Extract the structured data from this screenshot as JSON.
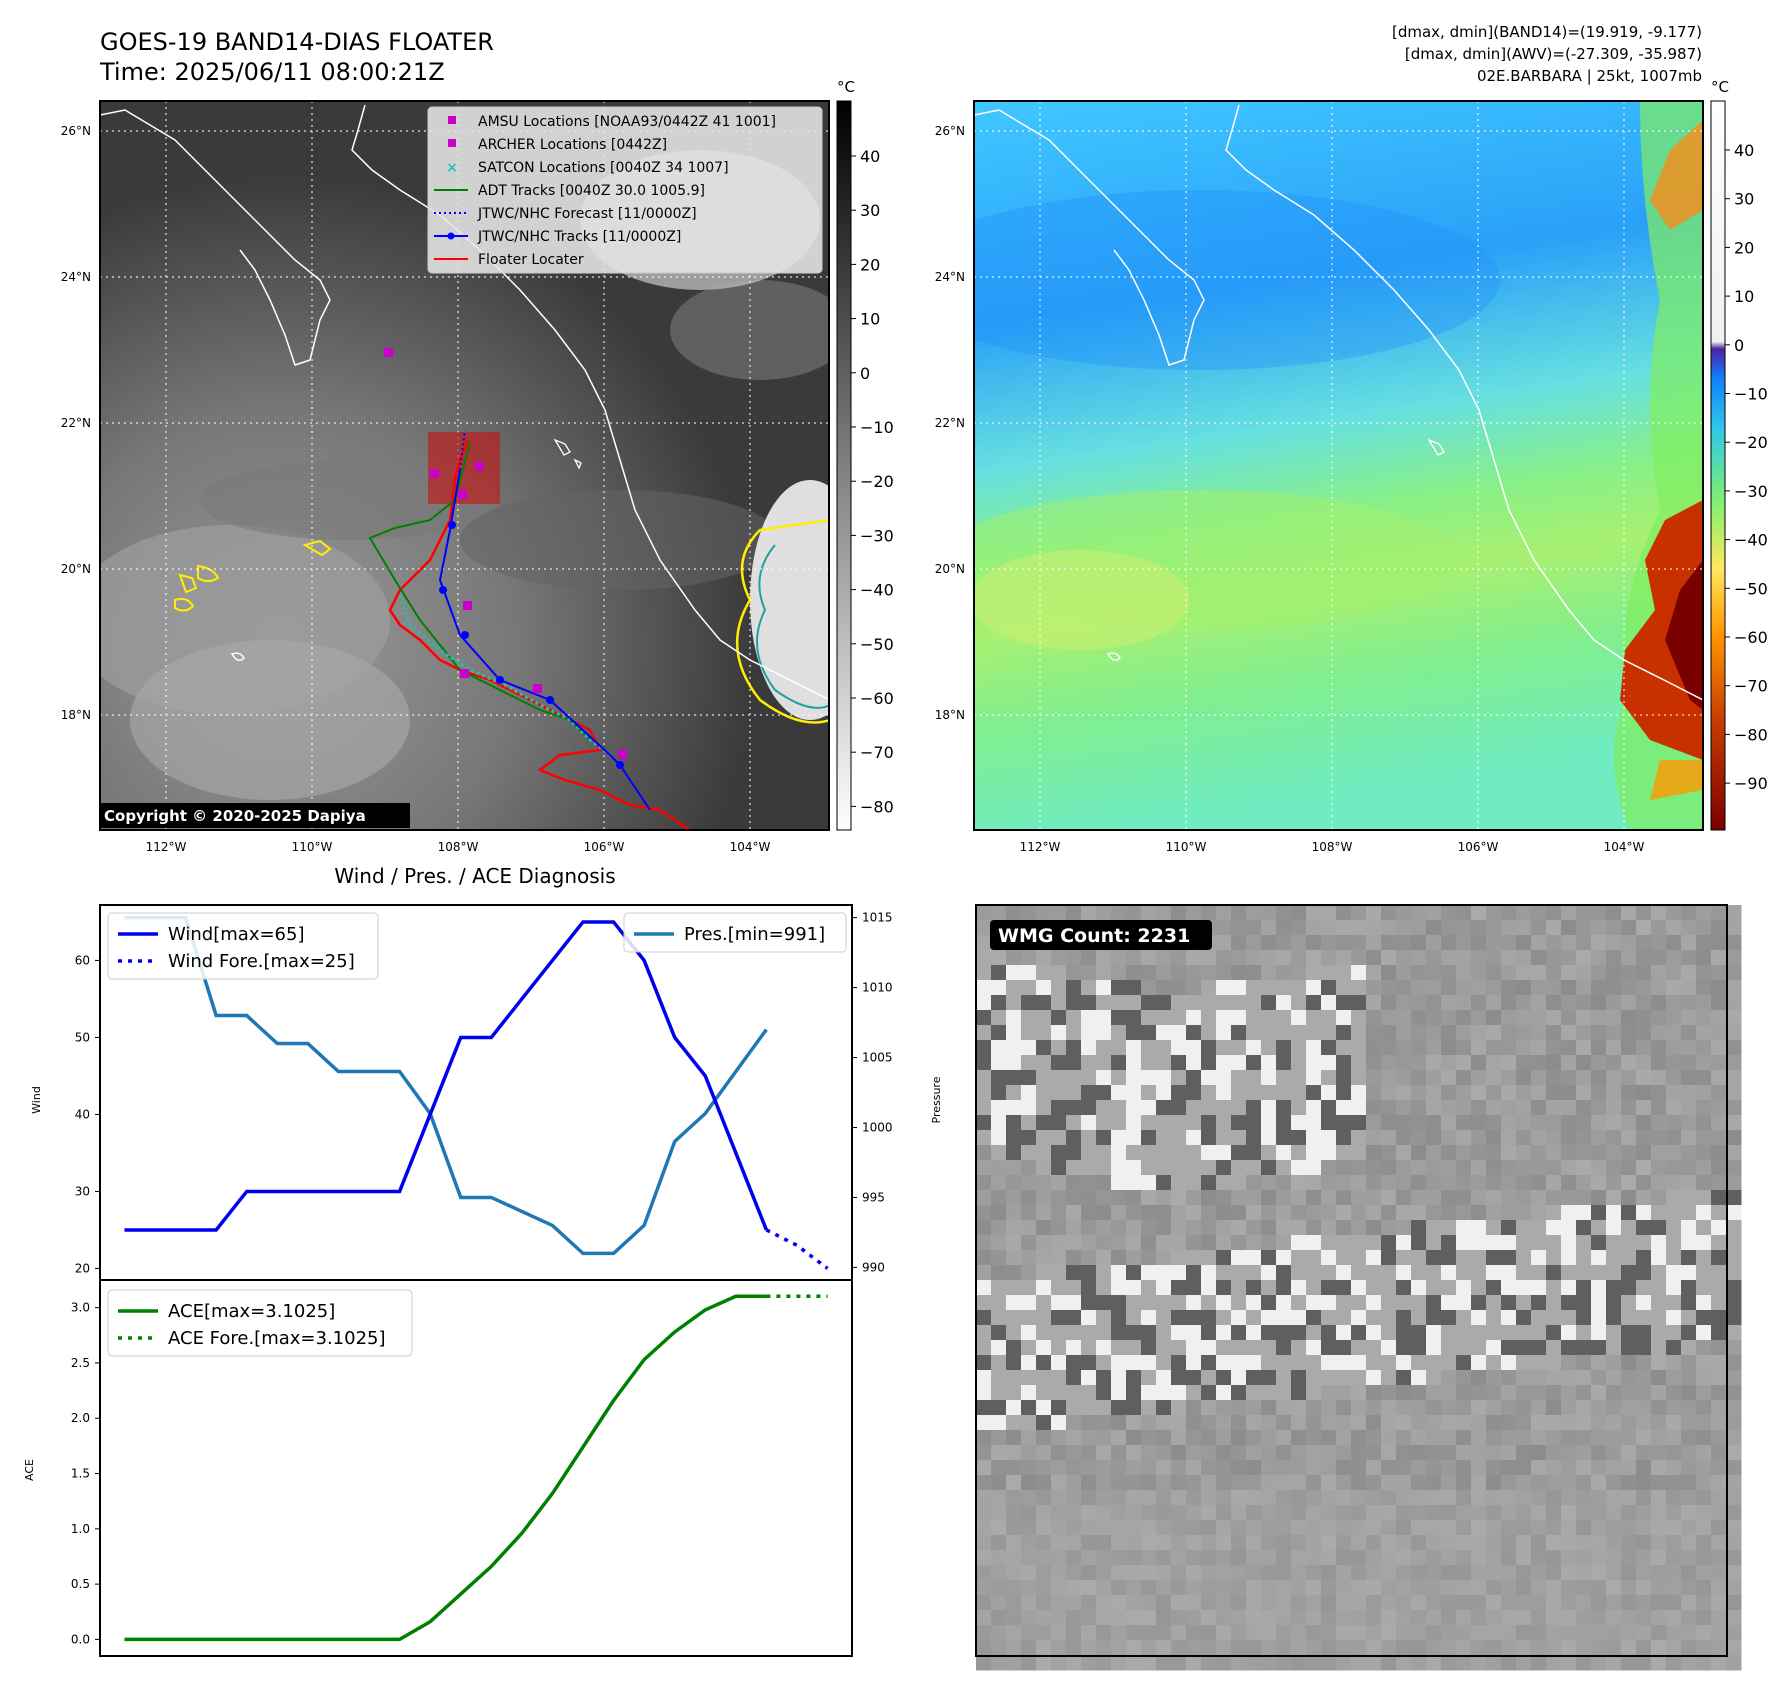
{
  "header": {
    "title_line1": "GOES-19 BAND14-DIAS FLOATER",
    "title_line2": "Time: 2025/06/11 08:00:21Z",
    "info_line1": "[dmax, dmin](BAND14)=(19.919, -9.177)",
    "info_line2": "[dmax, dmin](AWV)=(-27.309, -35.987)",
    "info_line3": "02E.BARBARA | 25kt, 1007mb"
  },
  "colors": {
    "wind": "#0000ee",
    "pressure": "#1f77b4",
    "ace": "#008000",
    "track_red": "#ff0000",
    "adt_green": "#008000",
    "jtwc_blue": "#0000ff",
    "amsu_magenta": "#cc00cc",
    "satcon_teal": "#20c0b0",
    "coast_yellow": "#ffee00"
  },
  "map_left": {
    "unit_label": "°C",
    "lat_labels": [
      "26°N",
      "24°N",
      "22°N",
      "20°N",
      "18°N"
    ],
    "lon_labels": [
      "112°W",
      "110°W",
      "108°W",
      "106°W",
      "104°W"
    ],
    "colorbar_ticks": [
      "40",
      "30",
      "20",
      "10",
      "0",
      "−10",
      "−20",
      "−30",
      "−40",
      "−50",
      "−60",
      "−70",
      "−80"
    ],
    "legend": [
      {
        "label": "AMSU Locations [NOAA93/0442Z 41 1001]",
        "kind": "square",
        "color": "#cc00cc"
      },
      {
        "label": "ARCHER Locations [0442Z]",
        "kind": "square",
        "color": "#cc00cc"
      },
      {
        "label": "SATCON Locations [0040Z 34 1007]",
        "kind": "x",
        "color": "#20c0b0"
      },
      {
        "label": "ADT Tracks [0040Z 30.0 1005.9]",
        "kind": "line",
        "color": "#008000"
      },
      {
        "label": "JTWC/NHC Forecast [11/0000Z]",
        "kind": "dotted",
        "color": "#0000ff"
      },
      {
        "label": "JTWC/NHC Tracks [11/0000Z]",
        "kind": "linedot",
        "color": "#0000ff"
      },
      {
        "label": "Floater Locater",
        "kind": "line",
        "color": "#ff0000"
      }
    ],
    "copyright": "Copyright © 2020-2025 Dapiya"
  },
  "map_right": {
    "unit_label": "°C",
    "lat_labels": [
      "26°N",
      "24°N",
      "22°N",
      "20°N",
      "18°N"
    ],
    "lon_labels": [
      "112°W",
      "110°W",
      "108°W",
      "106°W",
      "104°W"
    ],
    "colorbar_ticks": [
      "40",
      "30",
      "20",
      "10",
      "0",
      "−10",
      "−20",
      "−30",
      "−40",
      "−50",
      "−60",
      "−70",
      "−80",
      "−90"
    ]
  },
  "wmg": {
    "label": "WMG Count: 2231"
  },
  "chart_data": [
    {
      "type": "line",
      "title": "Wind / Pres. / ACE Diagnosis",
      "ylabel": "Wind",
      "ylabel_right": "Pressure",
      "ylim": [
        18.5,
        67.2
      ],
      "ylim_right": [
        989.1,
        1015.9
      ],
      "yticks": [
        20,
        30,
        40,
        50,
        60
      ],
      "yticks_right": [
        990,
        995,
        1000,
        1005,
        1010,
        1015
      ],
      "legend_left": [
        "Wind[max=65]",
        "Wind Fore.[max=25]"
      ],
      "legend_right": [
        "Pres.[min=991]"
      ],
      "x": [
        0,
        1,
        2,
        3,
        4,
        5,
        6,
        7,
        8,
        9,
        10,
        11,
        12,
        13,
        14,
        15,
        16,
        17,
        18,
        19,
        20,
        21,
        22
      ],
      "series": [
        {
          "name": "Wind[max=65]",
          "style": "solid",
          "x": [
            0,
            1,
            2,
            3,
            4,
            5,
            6,
            7,
            8,
            9,
            10,
            11,
            12,
            13,
            14,
            15,
            16,
            17,
            18,
            19,
            20,
            21
          ],
          "values": [
            25,
            25,
            25,
            25,
            30,
            30,
            30,
            30,
            30,
            30,
            40,
            50,
            50,
            55,
            60,
            65,
            65,
            60,
            50,
            45,
            35,
            25
          ]
        },
        {
          "name": "Wind Fore.[max=25]",
          "style": "dotted",
          "x": [
            21,
            22,
            23
          ],
          "values": [
            25,
            23,
            20
          ]
        },
        {
          "name": "Pres.[min=991]",
          "style": "solid",
          "axis": "right",
          "x": [
            0,
            1,
            2,
            3,
            4,
            5,
            6,
            7,
            8,
            9,
            10,
            11,
            12,
            13,
            14,
            15,
            16,
            17,
            18,
            19,
            20,
            21
          ],
          "values": [
            1015,
            1015,
            1015,
            1008,
            1008,
            1006,
            1006,
            1004,
            1004,
            1004,
            1001,
            995,
            995,
            994,
            993,
            991,
            991,
            993,
            999,
            1001,
            1004,
            1007
          ]
        }
      ]
    },
    {
      "type": "line",
      "ylabel": "ACE",
      "ylim": [
        -0.15,
        3.25
      ],
      "yticks": [
        "0.0",
        "0.5",
        "1.0",
        "1.5",
        "2.0",
        "2.5",
        "3.0"
      ],
      "legend": [
        "ACE[max=3.1025]",
        "ACE Fore.[max=3.1025]"
      ],
      "series": [
        {
          "name": "ACE[max=3.1025]",
          "style": "solid",
          "x": [
            0,
            1,
            2,
            3,
            4,
            5,
            6,
            7,
            8,
            9,
            10,
            11,
            12,
            13,
            14,
            15,
            16,
            17,
            18,
            19,
            20,
            21
          ],
          "values": [
            0,
            0,
            0,
            0,
            0,
            0,
            0,
            0,
            0,
            0,
            0.16,
            0.41,
            0.66,
            0.96,
            1.32,
            1.74,
            2.16,
            2.53,
            2.78,
            2.98,
            3.1025,
            3.1025
          ]
        },
        {
          "name": "ACE Fore.[max=3.1025]",
          "style": "dotted",
          "x": [
            21,
            22,
            23
          ],
          "values": [
            3.1025,
            3.1025,
            3.1025
          ]
        }
      ]
    }
  ]
}
